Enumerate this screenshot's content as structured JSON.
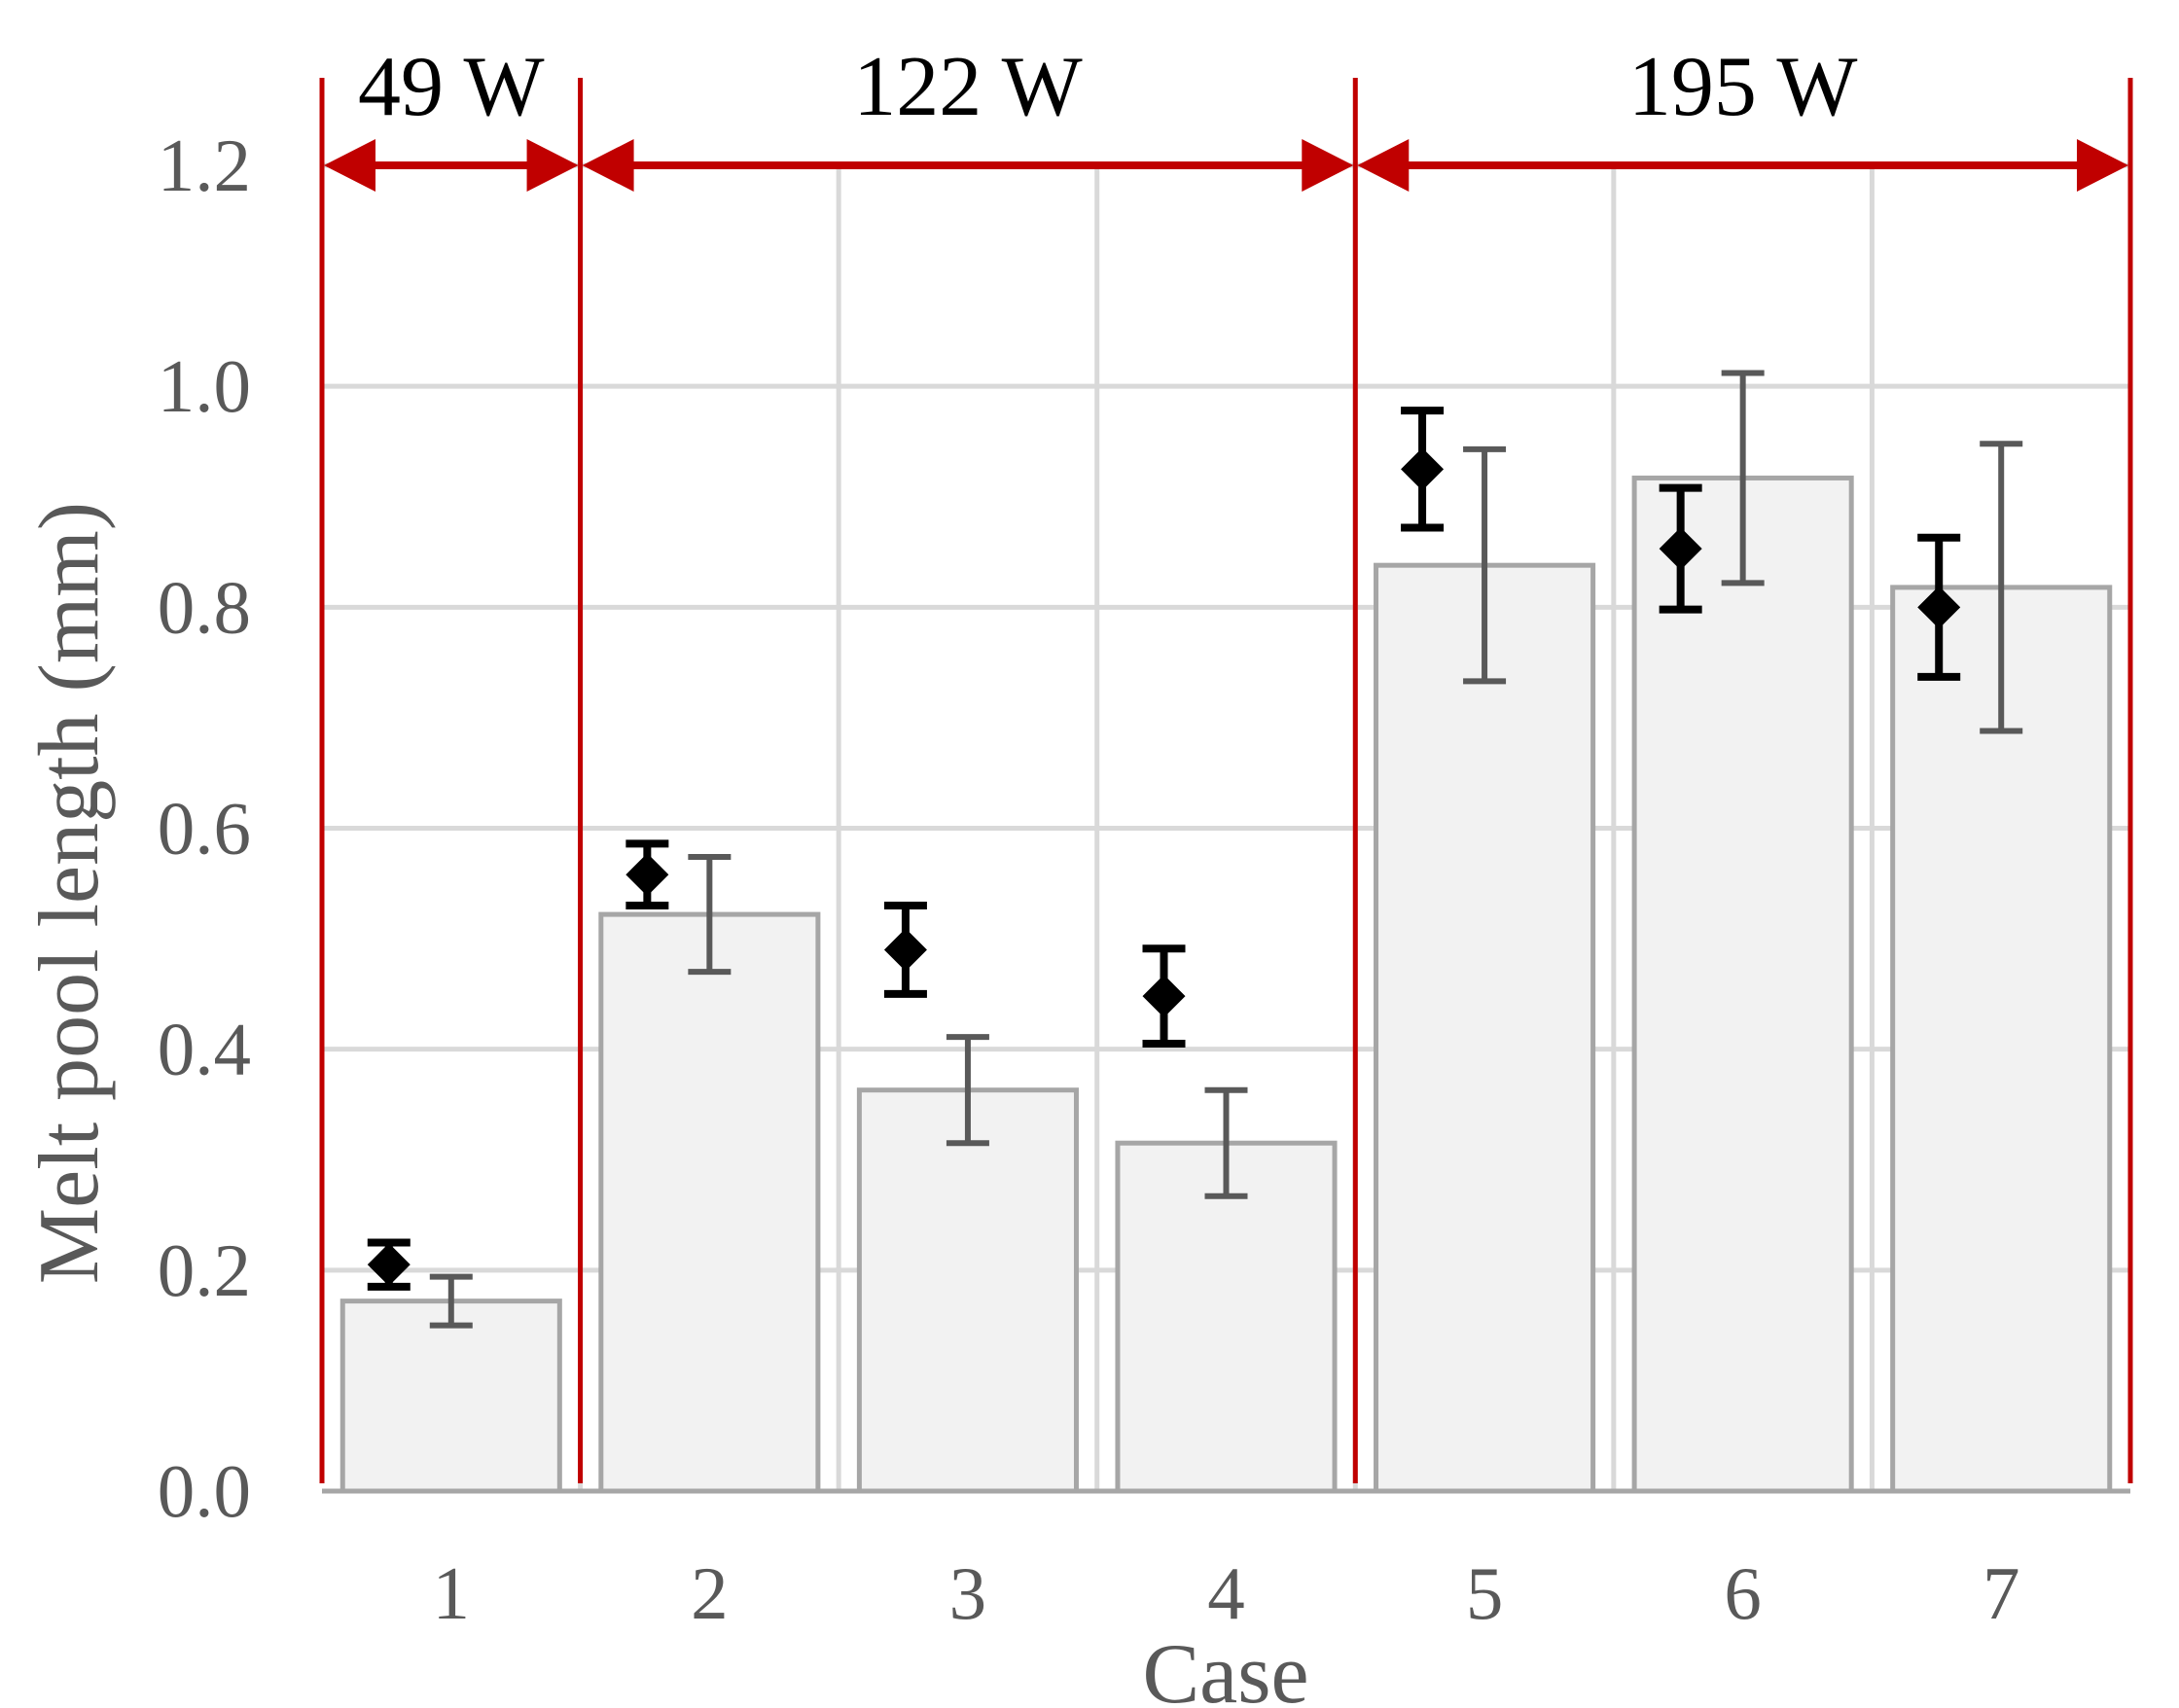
{
  "chart_data": {
    "type": "bar",
    "xlabel": "Case",
    "ylabel": "Melt pool length (mm)",
    "ylim": [
      0,
      1.2
    ],
    "yticks": [
      "0.0",
      "0.2",
      "0.4",
      "0.6",
      "0.8",
      "1.0",
      "1.2"
    ],
    "grid": true,
    "categories": [
      "1",
      "2",
      "3",
      "4",
      "5",
      "6",
      "7"
    ],
    "series": [
      {
        "kind": "bar",
        "color": "#f2f2f2",
        "edge_color": "#a6a6a6",
        "values": [
          0.172,
          0.522,
          0.363,
          0.315,
          0.838,
          0.917,
          0.818
        ],
        "err_low": [
          0.022,
          0.052,
          0.048,
          0.048,
          0.105,
          0.095,
          0.13
        ],
        "err_high": [
          0.022,
          0.052,
          0.048,
          0.048,
          0.105,
          0.095,
          0.13
        ]
      },
      {
        "kind": "point",
        "marker": "diamond",
        "color": "#000000",
        "values": [
          0.205,
          0.558,
          0.49,
          0.448,
          0.925,
          0.853,
          0.8
        ],
        "err_low": [
          0.02,
          0.028,
          0.04,
          0.043,
          0.053,
          0.055,
          0.063
        ],
        "err_high": [
          0.02,
          0.028,
          0.04,
          0.043,
          0.053,
          0.055,
          0.063
        ]
      }
    ],
    "annotations": {
      "color": "#c00000",
      "groups": [
        {
          "label": "49 W",
          "from_boundary": 0,
          "to_boundary": 1
        },
        {
          "label": "122 W",
          "from_boundary": 1,
          "to_boundary": 4
        },
        {
          "label": "195 W",
          "from_boundary": 4,
          "to_boundary": 7
        }
      ]
    }
  }
}
